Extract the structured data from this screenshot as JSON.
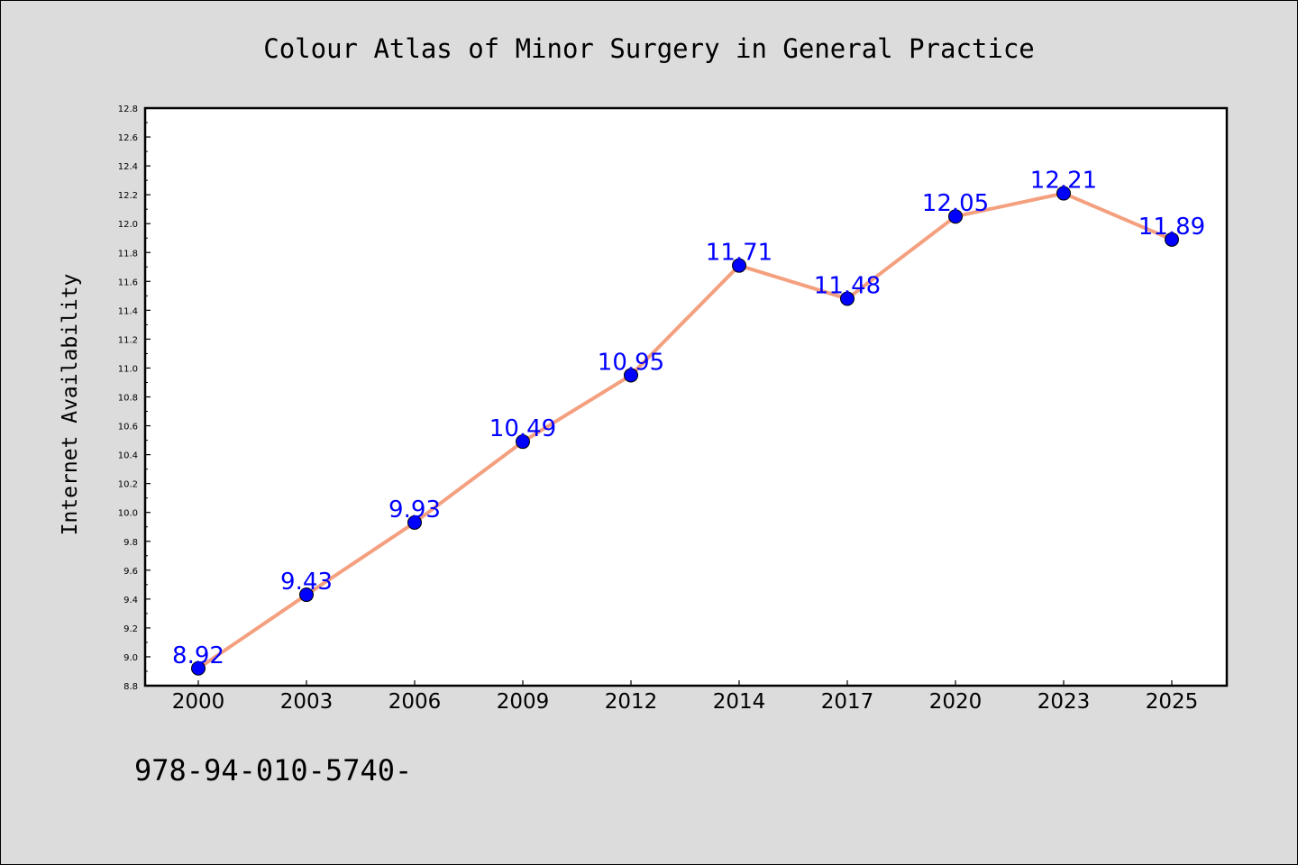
{
  "chart_data": {
    "type": "line",
    "title": "Colour Atlas of Minor Surgery in General Practice",
    "xlabel": "",
    "ylabel": "Internet Availability",
    "categories": [
      "2000",
      "2003",
      "2006",
      "2009",
      "2012",
      "2014",
      "2017",
      "2020",
      "2023",
      "2025"
    ],
    "series": [
      {
        "values": [
          8.92,
          9.43,
          9.93,
          10.49,
          10.95,
          11.71,
          11.48,
          12.05,
          12.21,
          11.89
        ],
        "line_color": "#f4a07f",
        "marker_color": "#0000ff"
      }
    ],
    "data_labels": [
      "8.92",
      "9.43",
      "9.93",
      "10.49",
      "10.95",
      "11.71",
      "11.48",
      "12.05",
      "12.21",
      "11.89"
    ],
    "data_label_color": "#0000ff",
    "ylim": [
      8.8,
      12.8
    ],
    "yticks": [
      "8.8",
      "9.0",
      "9.2",
      "9.4",
      "9.6",
      "9.8",
      "10.0",
      "10.2",
      "10.4",
      "10.6",
      "10.8",
      "11.0",
      "11.2",
      "11.4",
      "11.6",
      "11.8",
      "12.0",
      "12.2",
      "12.4",
      "12.6",
      "12.8"
    ],
    "grid": false,
    "legend": "none"
  },
  "footer": {
    "text": "978-94-010-5740-"
  },
  "colors": {
    "background": "#dcdcdc",
    "plot_background": "#ffffff"
  }
}
